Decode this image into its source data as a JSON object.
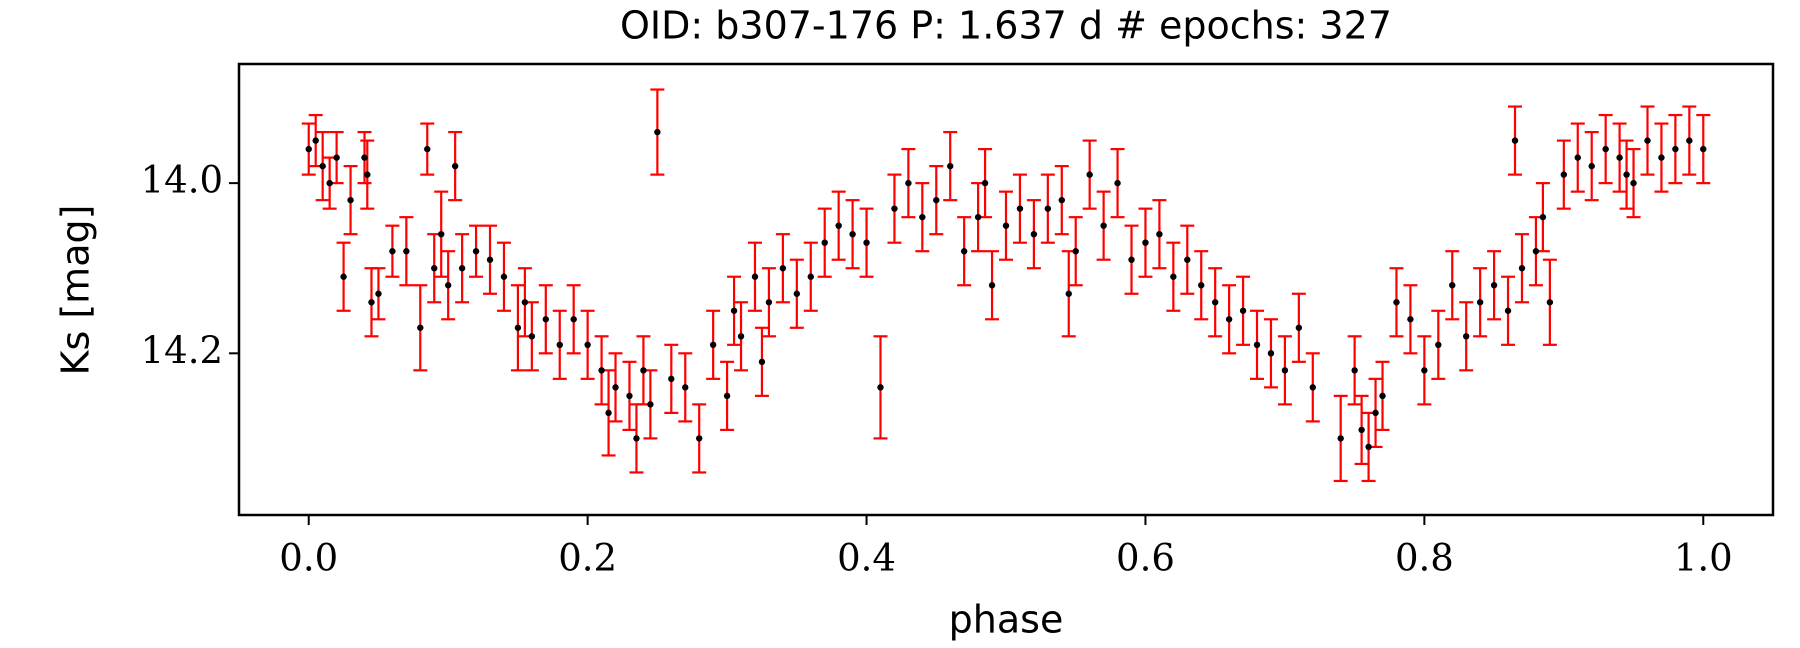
{
  "chart_data": {
    "type": "errorbar",
    "title": "OID: b307-176    P: 1.637 d    # epochs: 327",
    "xlabel": "phase",
    "ylabel": "Ks [mag]",
    "xlim": [
      -0.05,
      1.05
    ],
    "ylim": [
      13.86,
      14.39
    ],
    "invert_y": true,
    "xticks": [
      {
        "value": 0,
        "label": "0.0"
      },
      {
        "value": 0.2,
        "label": "0.2"
      },
      {
        "value": 0.4,
        "label": "0.4"
      },
      {
        "value": 0.6,
        "label": "0.6"
      },
      {
        "value": 0.8,
        "label": "0.8"
      },
      {
        "value": 1,
        "label": "1.0"
      }
    ],
    "yticks": [
      {
        "value": 14,
        "label": "14.0"
      },
      {
        "value": 14.2,
        "label": "14.2"
      }
    ],
    "color": "#000000",
    "errorbar_color": "#ff0000",
    "x": [
      0,
      0.005,
      0.01,
      0.015,
      0.02,
      0.025,
      0.03,
      0.04,
      0.042,
      0.045,
      0.05,
      0.06,
      0.07,
      0.08,
      0.085,
      0.09,
      0.095,
      0.1,
      0.105,
      0.11,
      0.12,
      0.13,
      0.14,
      0.15,
      0.155,
      0.16,
      0.17,
      0.18,
      0.19,
      0.2,
      0.21,
      0.215,
      0.22,
      0.23,
      0.235,
      0.24,
      0.245,
      0.25,
      0.26,
      0.27,
      0.28,
      0.29,
      0.3,
      0.305,
      0.31,
      0.32,
      0.325,
      0.33,
      0.34,
      0.35,
      0.36,
      0.37,
      0.38,
      0.39,
      0.4,
      0.41,
      0.42,
      0.43,
      0.44,
      0.45,
      0.46,
      0.47,
      0.48,
      0.485,
      0.49,
      0.5,
      0.51,
      0.52,
      0.53,
      0.54,
      0.545,
      0.55,
      0.56,
      0.57,
      0.58,
      0.59,
      0.6,
      0.61,
      0.62,
      0.63,
      0.64,
      0.65,
      0.66,
      0.67,
      0.68,
      0.69,
      0.7,
      0.71,
      0.72,
      0.74,
      0.75,
      0.755,
      0.76,
      0.765,
      0.77,
      0.78,
      0.79,
      0.8,
      0.81,
      0.82,
      0.83,
      0.84,
      0.85,
      0.86,
      0.865,
      0.87,
      0.88,
      0.885,
      0.89,
      0.9,
      0.91,
      0.92,
      0.93,
      0.94,
      0.945,
      0.95,
      0.96,
      0.97,
      0.98,
      0.99,
      1
    ],
    "values": [
      13.96,
      13.95,
      13.98,
      14.0,
      13.97,
      14.11,
      14.02,
      13.97,
      13.99,
      14.14,
      14.13,
      14.08,
      14.08,
      14.17,
      13.96,
      14.1,
      14.06,
      14.12,
      13.98,
      14.1,
      14.08,
      14.09,
      14.11,
      14.17,
      14.14,
      14.18,
      14.16,
      14.19,
      14.16,
      14.19,
      14.22,
      14.27,
      14.24,
      14.25,
      14.3,
      14.22,
      14.26,
      13.94,
      14.23,
      14.24,
      14.3,
      14.19,
      14.25,
      14.15,
      14.18,
      14.11,
      14.21,
      14.14,
      14.1,
      14.13,
      14.11,
      14.07,
      14.05,
      14.06,
      14.07,
      14.24,
      14.03,
      14.0,
      14.04,
      14.02,
      13.98,
      14.08,
      14.04,
      14.0,
      14.12,
      14.05,
      14.03,
      14.06,
      14.03,
      14.02,
      14.13,
      14.08,
      13.99,
      14.05,
      14.0,
      14.09,
      14.07,
      14.06,
      14.11,
      14.09,
      14.12,
      14.14,
      14.16,
      14.15,
      14.19,
      14.2,
      14.22,
      14.17,
      14.24,
      14.3,
      14.22,
      14.29,
      14.31,
      14.27,
      14.25,
      14.14,
      14.16,
      14.22,
      14.19,
      14.12,
      14.18,
      14.14,
      14.12,
      14.15,
      13.95,
      14.1,
      14.08,
      14.04,
      14.14,
      13.99,
      13.97,
      13.98,
      13.96,
      13.97,
      13.99,
      14.0,
      13.95,
      13.97,
      13.96,
      13.95,
      13.96
    ],
    "errors": [
      0.03,
      0.03,
      0.04,
      0.03,
      0.03,
      0.04,
      0.04,
      0.03,
      0.04,
      0.04,
      0.03,
      0.03,
      0.04,
      0.05,
      0.03,
      0.04,
      0.05,
      0.04,
      0.04,
      0.04,
      0.03,
      0.04,
      0.04,
      0.05,
      0.04,
      0.04,
      0.04,
      0.04,
      0.04,
      0.04,
      0.04,
      0.05,
      0.04,
      0.04,
      0.04,
      0.04,
      0.04,
      0.05,
      0.04,
      0.04,
      0.04,
      0.04,
      0.04,
      0.04,
      0.04,
      0.04,
      0.04,
      0.04,
      0.04,
      0.04,
      0.04,
      0.04,
      0.04,
      0.04,
      0.04,
      0.06,
      0.04,
      0.04,
      0.04,
      0.04,
      0.04,
      0.04,
      0.04,
      0.04,
      0.04,
      0.04,
      0.04,
      0.04,
      0.04,
      0.04,
      0.05,
      0.04,
      0.04,
      0.04,
      0.04,
      0.04,
      0.04,
      0.04,
      0.04,
      0.04,
      0.04,
      0.04,
      0.04,
      0.04,
      0.04,
      0.04,
      0.04,
      0.04,
      0.04,
      0.05,
      0.04,
      0.04,
      0.04,
      0.04,
      0.04,
      0.04,
      0.04,
      0.04,
      0.04,
      0.04,
      0.04,
      0.04,
      0.04,
      0.04,
      0.04,
      0.04,
      0.04,
      0.04,
      0.05,
      0.04,
      0.04,
      0.04,
      0.04,
      0.04,
      0.04,
      0.04,
      0.04,
      0.04,
      0.04,
      0.04,
      0.04
    ]
  }
}
